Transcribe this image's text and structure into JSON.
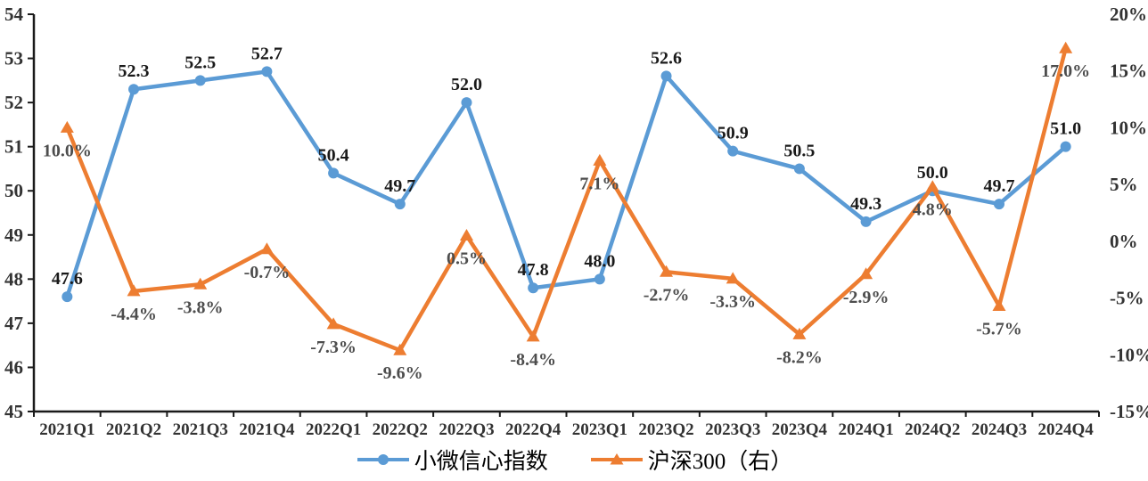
{
  "chart_data": {
    "type": "line",
    "categories": [
      "2021Q1",
      "2021Q2",
      "2021Q3",
      "2021Q4",
      "2022Q1",
      "2022Q2",
      "2022Q3",
      "2022Q4",
      "2023Q1",
      "2023Q2",
      "2023Q3",
      "2023Q4",
      "2024Q1",
      "2024Q2",
      "2024Q3",
      "2024Q4"
    ],
    "series": [
      {
        "name": "小微信心指数",
        "axis": "left",
        "color": "#5B9BD5",
        "marker": "circle",
        "label_position": "above",
        "label_color": "#1a1a1a",
        "values": [
          47.6,
          52.3,
          52.5,
          52.7,
          50.4,
          49.7,
          52.0,
          47.8,
          48.0,
          52.6,
          50.9,
          50.5,
          49.3,
          50.0,
          49.7,
          51.0
        ],
        "labels": [
          "47.6",
          "52.3",
          "52.5",
          "52.7",
          "50.4",
          "49.7",
          "52.0",
          "47.8",
          "48.0",
          "52.6",
          "50.9",
          "50.5",
          "49.3",
          "50.0",
          "49.7",
          "51.0"
        ]
      },
      {
        "name": "沪深300（右）",
        "axis": "right",
        "color": "#ED7D31",
        "marker": "triangle",
        "label_position": "below",
        "label_color": "#4d4d4d",
        "values": [
          10.0,
          -4.4,
          -3.8,
          -0.7,
          -7.3,
          -9.6,
          0.5,
          -8.4,
          7.1,
          -2.7,
          -3.3,
          -8.2,
          -2.9,
          4.8,
          -5.7,
          17.0
        ],
        "labels": [
          "10.0%",
          "-4.4%",
          "-3.8%",
          "-0.7%",
          "-7.3%",
          "-9.6%",
          "0.5%",
          "-8.4%",
          "7.1%",
          "-2.7%",
          "-3.3%",
          "-8.2%",
          "-2.9%",
          "4.8%",
          "-5.7%",
          "17.0%"
        ]
      }
    ],
    "left_axis": {
      "min": 45,
      "max": 54,
      "step": 1,
      "ticks": [
        "54",
        "53",
        "52",
        "51",
        "50",
        "49",
        "48",
        "47",
        "46",
        "45"
      ]
    },
    "right_axis": {
      "min": -15,
      "max": 20,
      "step": 5,
      "ticks": [
        "20%",
        "15%",
        "10%",
        "5%",
        "0%",
        "-5%",
        "-10%",
        "-15%"
      ]
    },
    "grid": false,
    "legend_position": "bottom-center",
    "title": "",
    "xlabel": "",
    "ylabel": "",
    "axis_color": "#1a1a1a",
    "tick_label_color": "#333333"
  }
}
